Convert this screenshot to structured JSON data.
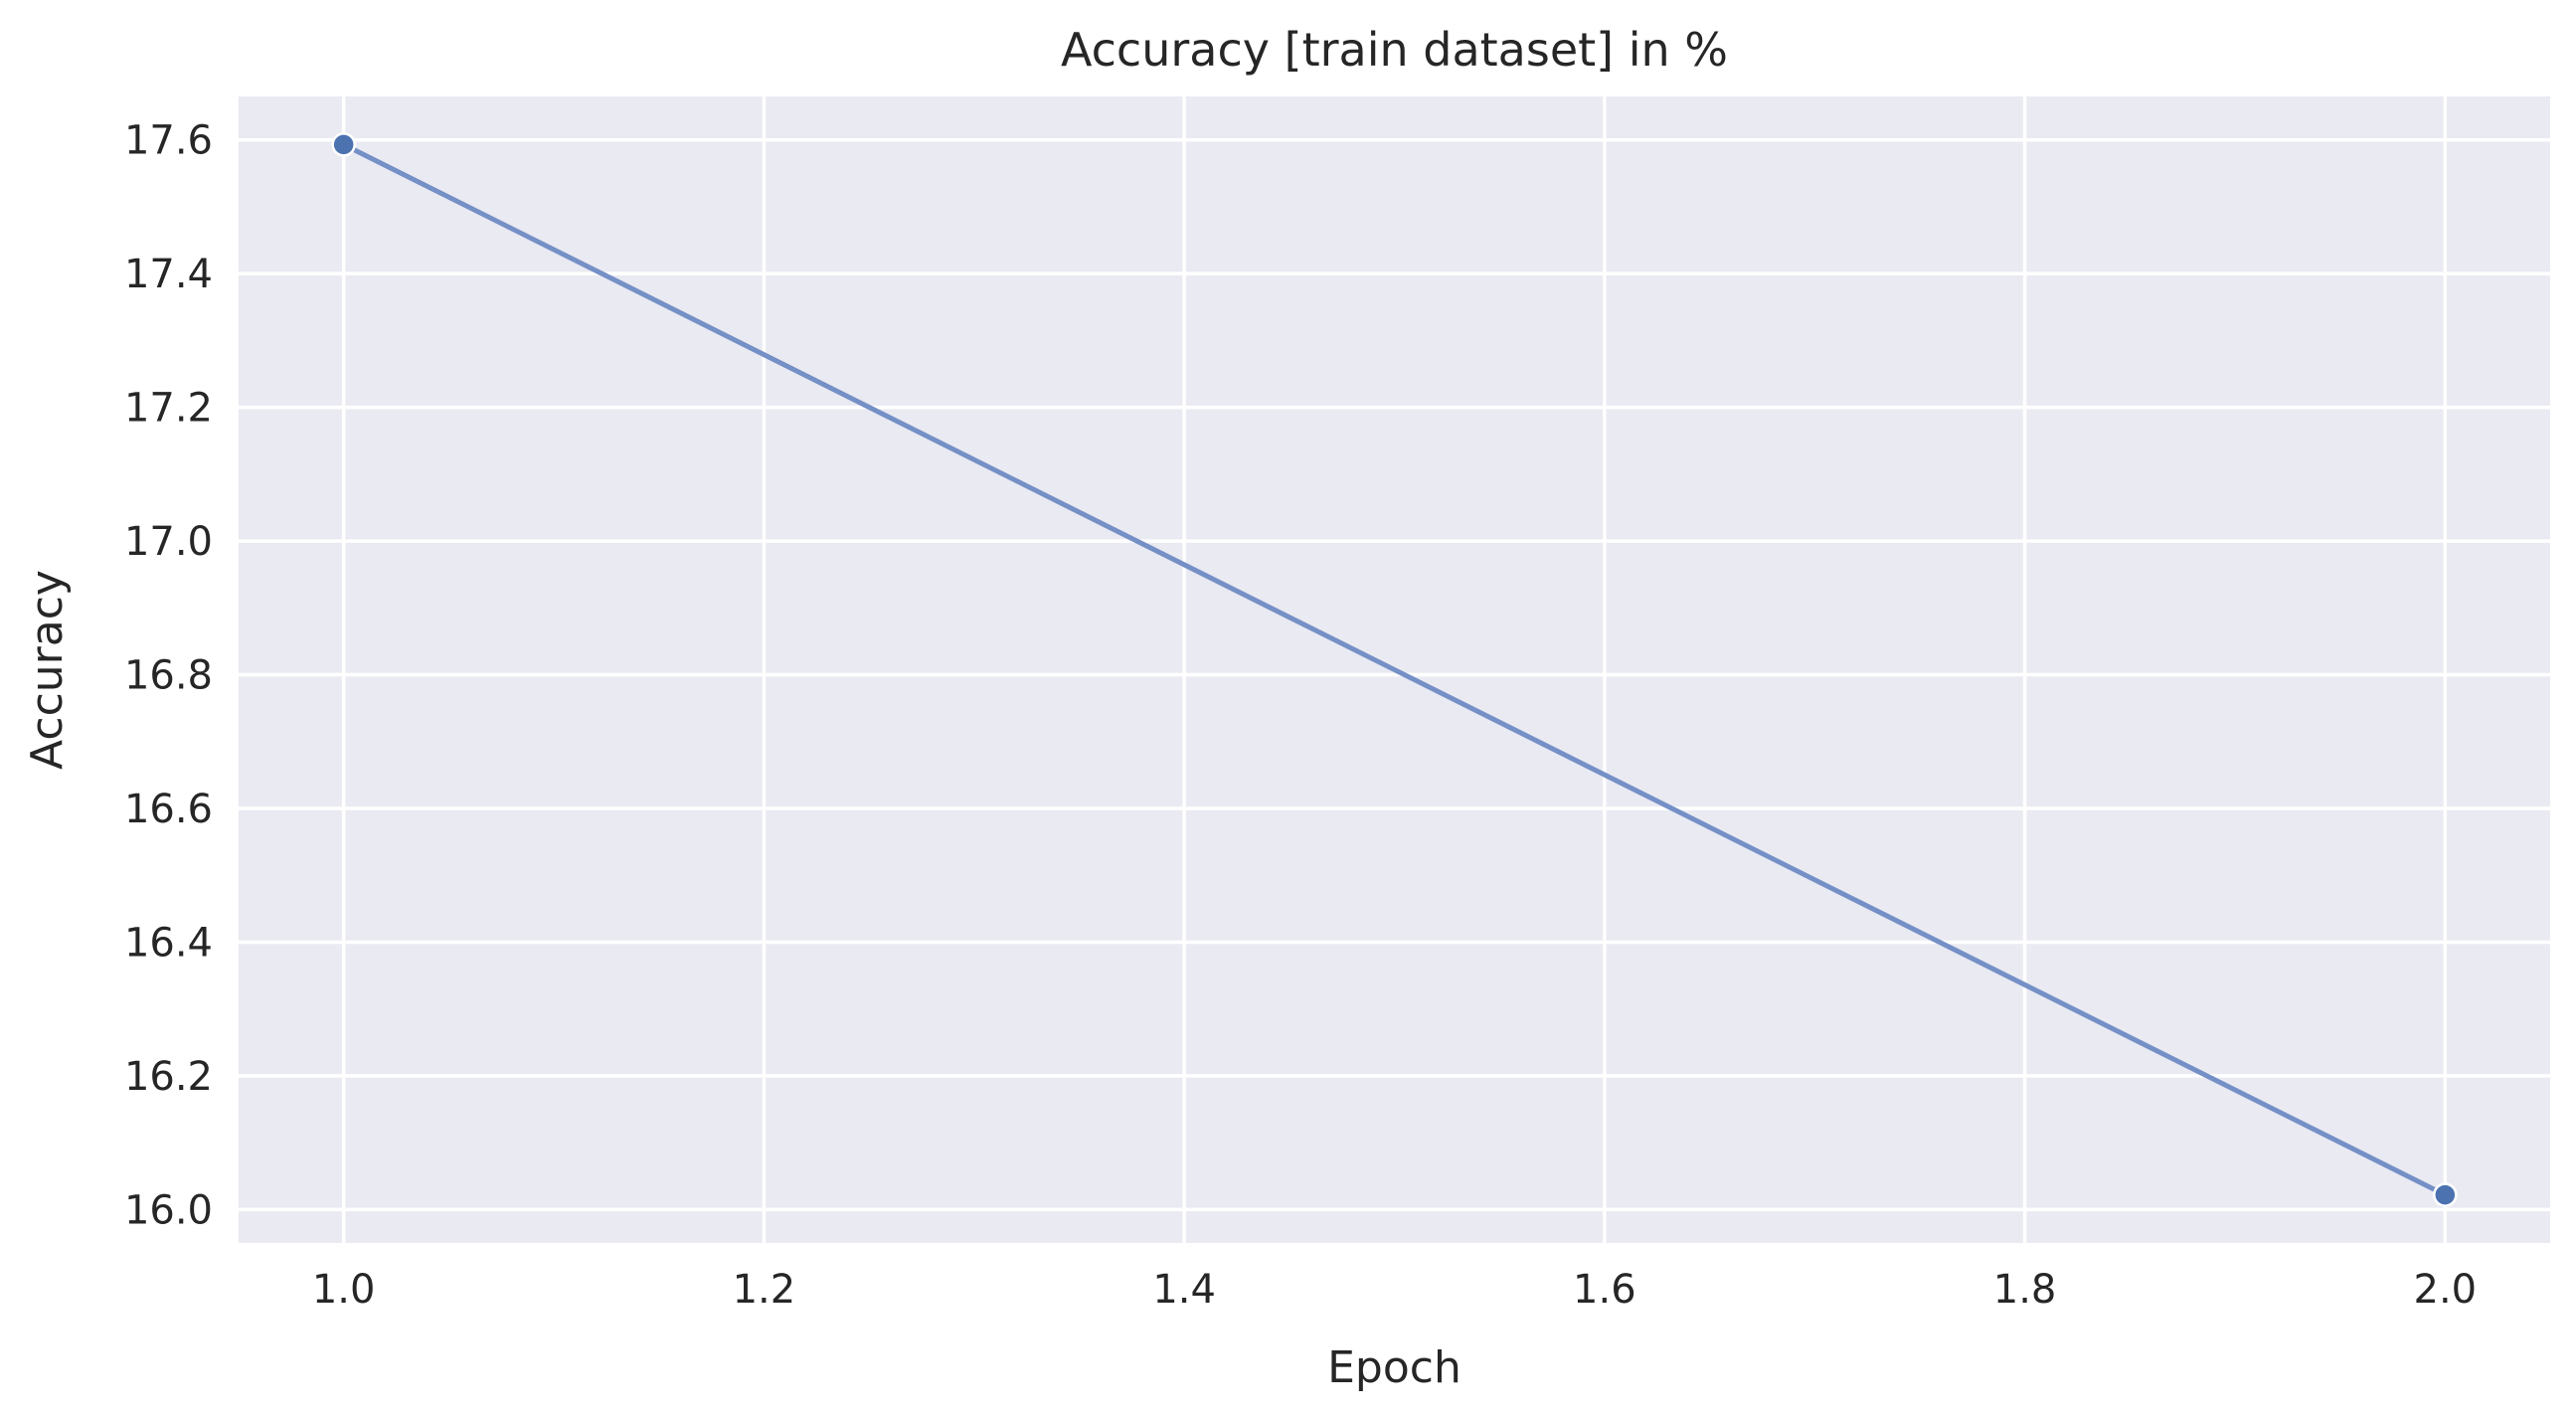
{
  "chart_data": {
    "type": "line",
    "title": "Accuracy [train dataset] in %",
    "xlabel": "Epoch",
    "ylabel": "Accuracy",
    "x": [
      1.0,
      2.0
    ],
    "series": [
      {
        "values": [
          17.593,
          16.022
        ]
      }
    ],
    "xlim": [
      0.95,
      2.05
    ],
    "ylim": [
      15.95,
      17.665
    ],
    "xticks": [
      1.0,
      1.2,
      1.4,
      1.6,
      1.8,
      2.0
    ],
    "xtick_labels": [
      "1.0",
      "1.2",
      "1.4",
      "1.6",
      "1.8",
      "2.0"
    ],
    "yticks": [
      16.0,
      16.2,
      16.4,
      16.6,
      16.8,
      17.0,
      17.2,
      17.4,
      17.6
    ],
    "ytick_labels": [
      "16.0",
      "16.2",
      "16.4",
      "16.6",
      "16.8",
      "17.0",
      "17.2",
      "17.4",
      "17.6"
    ],
    "grid": true,
    "legend": "none",
    "colors": {
      "plot_background": "#eaeaf2",
      "grid": "#ffffff",
      "line": "#7590c6",
      "marker": "#4c72b0",
      "text": "#262626"
    }
  }
}
